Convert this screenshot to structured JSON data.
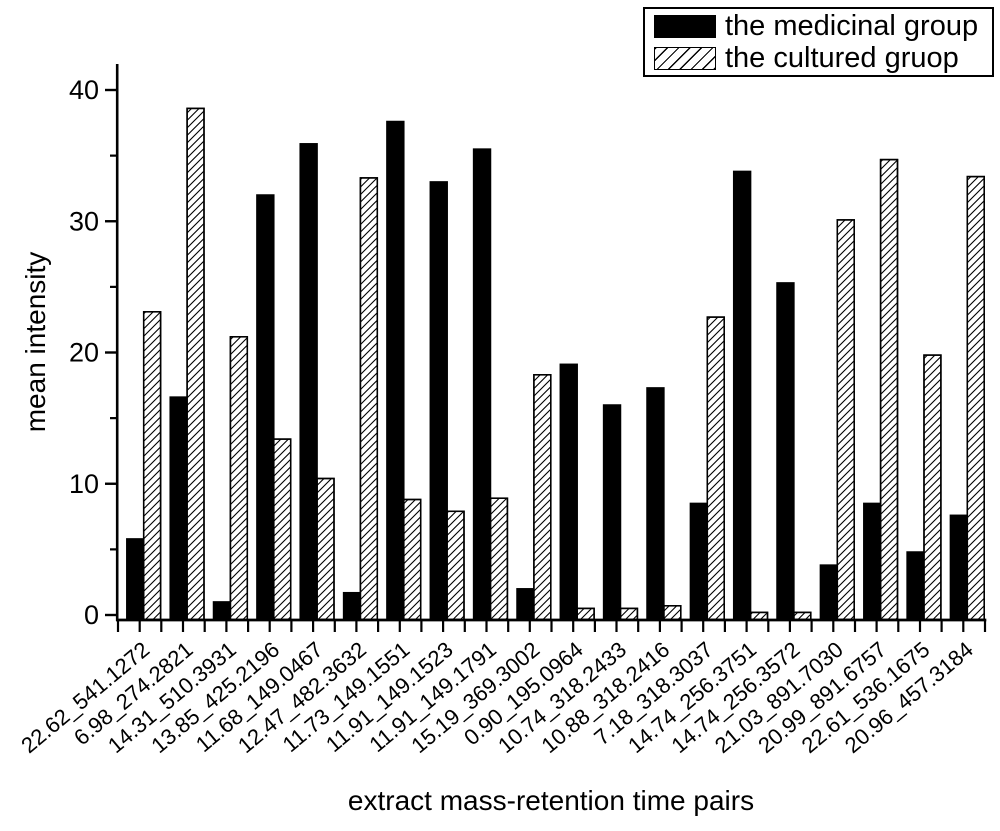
{
  "chart_data": {
    "type": "bar",
    "title": "",
    "xlabel": "extract mass-retention time pairs",
    "ylabel": "mean intensity",
    "ylim": [
      0,
      42
    ],
    "yticks_major": [
      0,
      10,
      20,
      30,
      40
    ],
    "yticks_minor": [
      5,
      15,
      25,
      35
    ],
    "grid": false,
    "legend_position": "top-right",
    "categories": [
      "22.62_541.1272",
      "6.98_274.2821",
      "14.31_510.3931",
      "13.85_425.2196",
      "11.68_149.0467",
      "12.47_482.3632",
      "11.73_149.1551",
      "11.91_149.1523",
      "11.91_149.1791",
      "15.19_369.3002",
      "0.90_195.0964",
      "10.74_318.2433",
      "10.88_318.2416",
      "7.18_318.3037",
      "14.74_256.3751",
      "14.74_256.3572",
      "21.03_891.7030",
      "20.99_891.6757",
      "22.61_536.1675",
      "20.96_457.3184"
    ],
    "series": [
      {
        "name": "the medicinal group",
        "style": "solid-black",
        "values": [
          5.8,
          16.6,
          1.0,
          32.0,
          35.9,
          1.7,
          37.6,
          33.0,
          35.5,
          2.0,
          19.1,
          16.0,
          17.3,
          8.5,
          33.8,
          25.3,
          3.8,
          8.5,
          4.8,
          7.6
        ]
      },
      {
        "name": "the cultured gruop",
        "style": "hatched",
        "values": [
          23.1,
          38.6,
          21.2,
          13.4,
          10.4,
          33.3,
          8.8,
          7.9,
          8.9,
          18.3,
          0.5,
          0.5,
          0.7,
          22.7,
          0.2,
          0.2,
          30.1,
          34.7,
          19.8,
          33.4
        ]
      }
    ],
    "colors": {
      "bar_fill": "#000000",
      "bar_outline": "#000000",
      "hatch_lines": "#000000",
      "background": "#ffffff"
    }
  }
}
